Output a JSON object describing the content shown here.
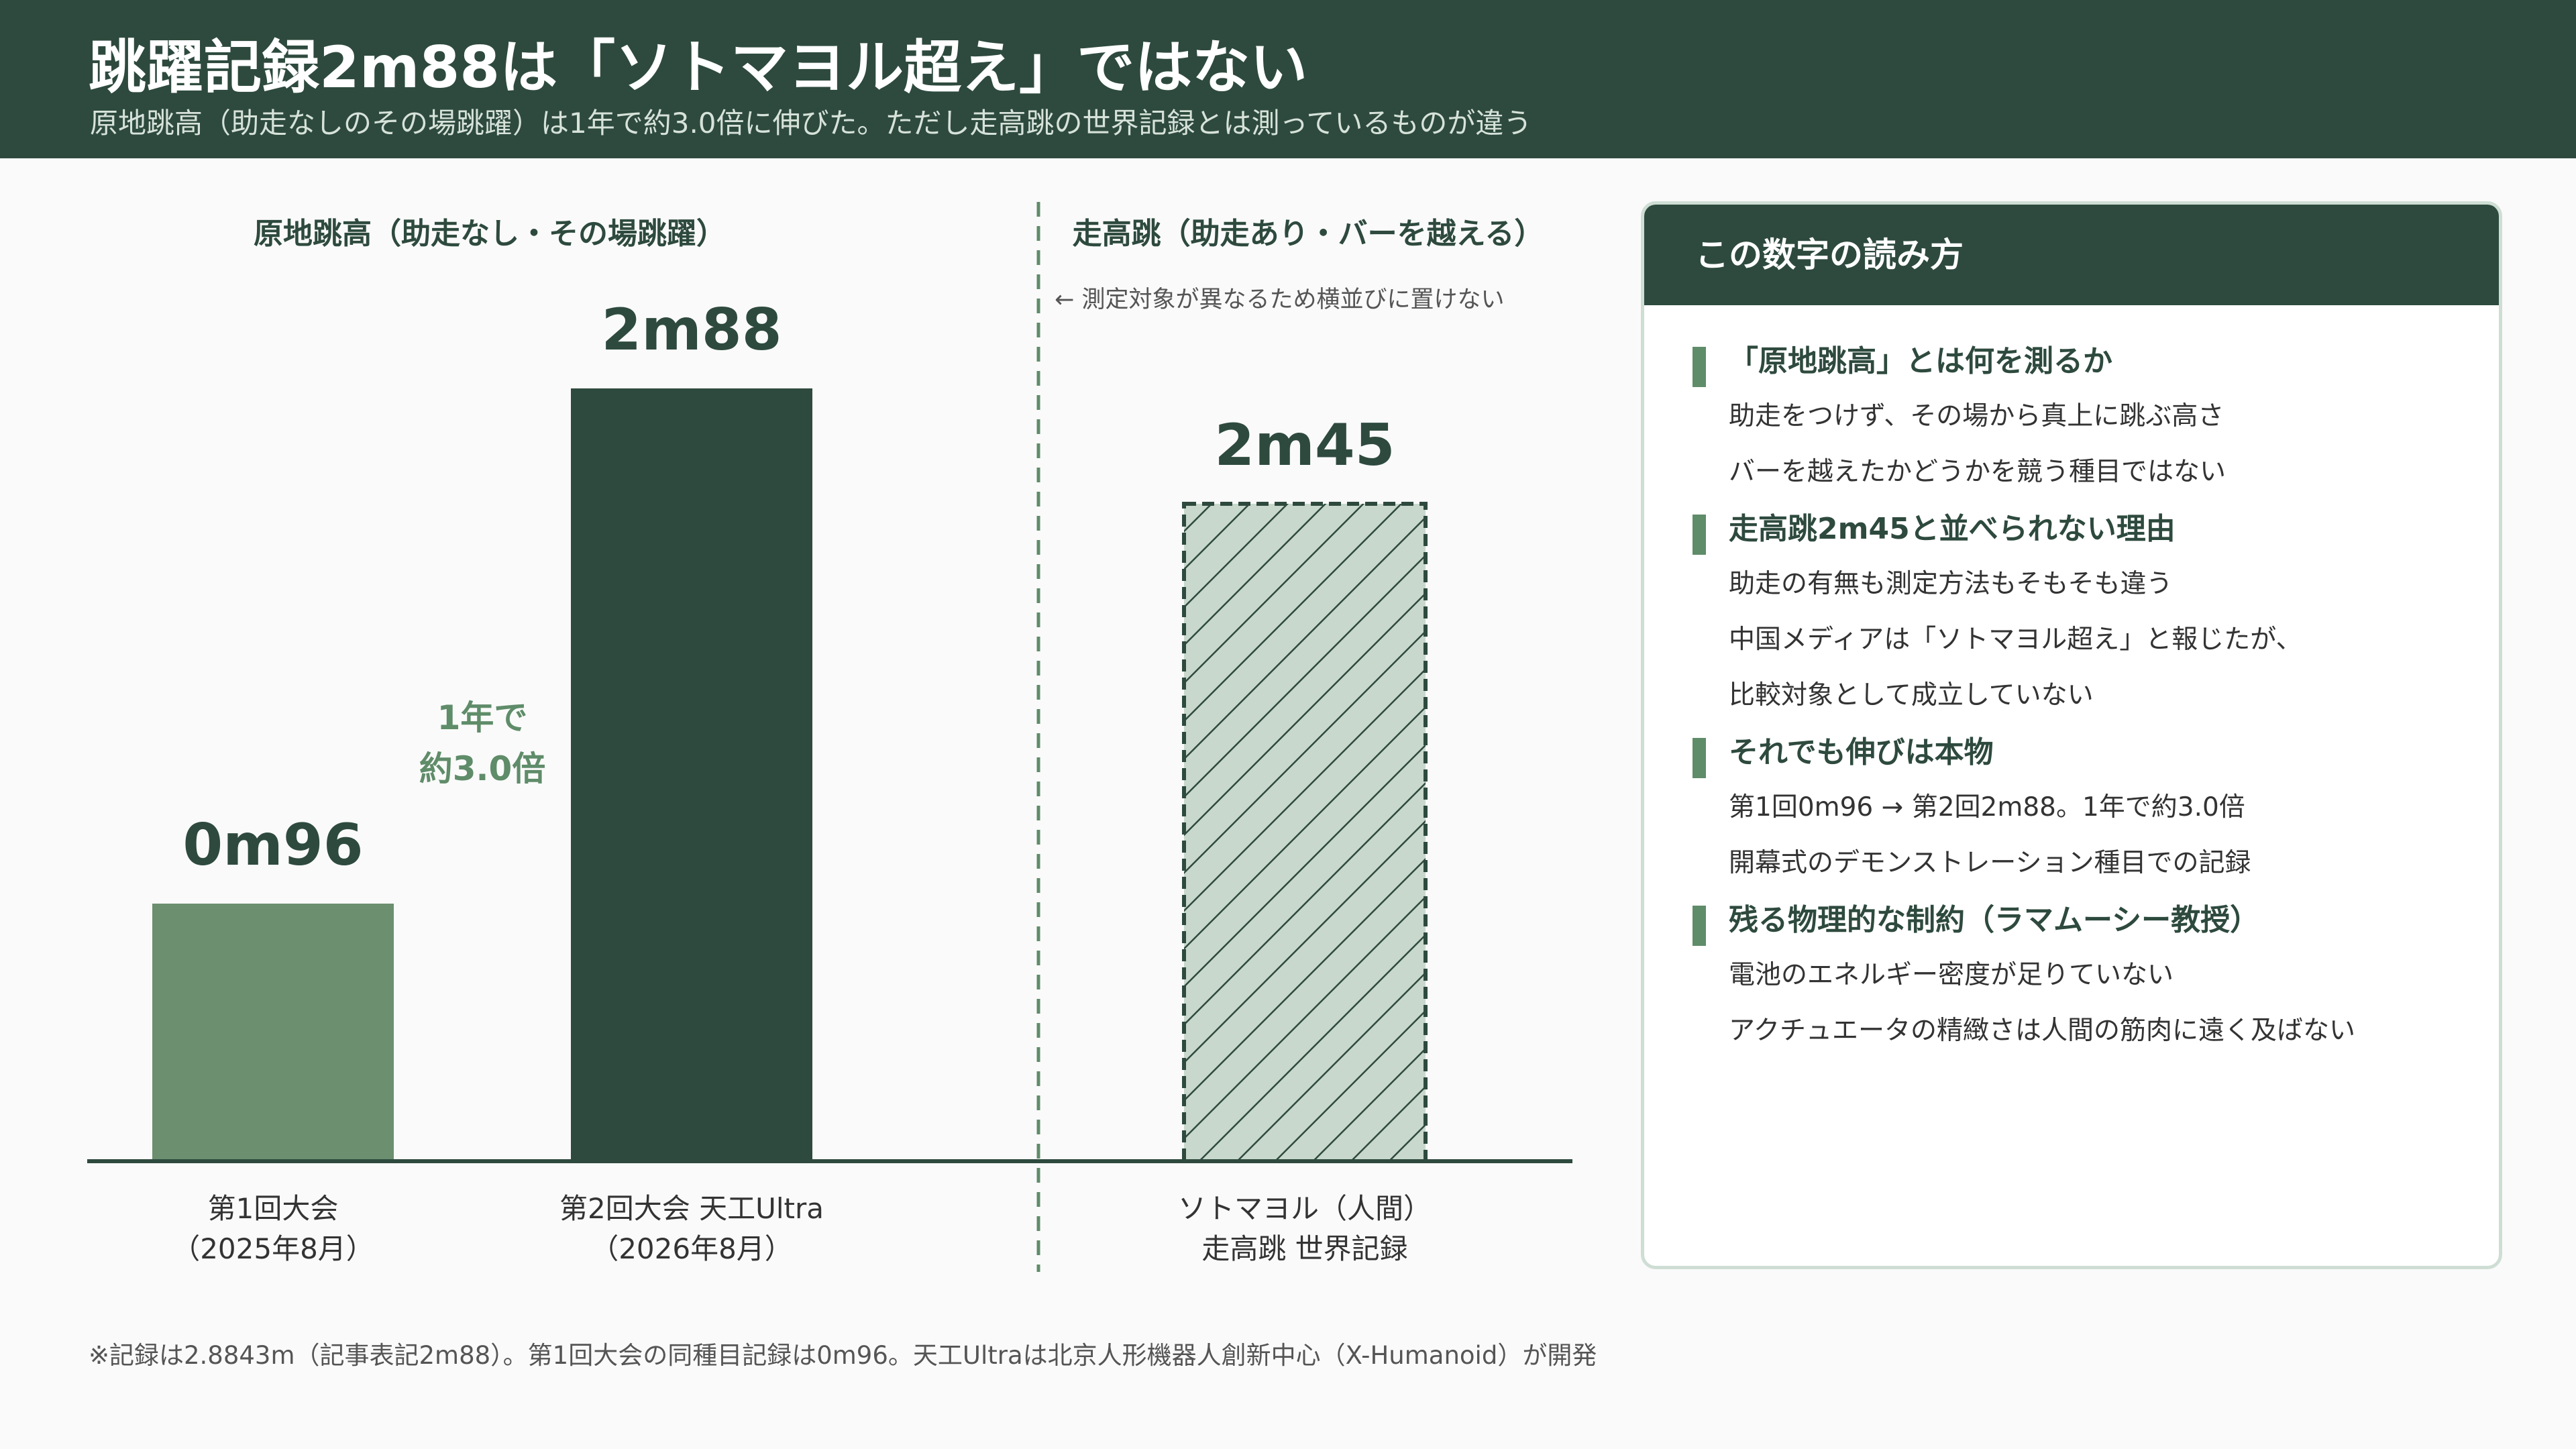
{
  "header": {
    "title": "跳躍記録2m88は「ソトマヨル超え」ではない",
    "subtitle": "原地跳高（助走なしのその場跳躍）は1年で約3.0倍に伸びた。ただし走高跳の世界記録とは測っているものが違う"
  },
  "chart_data": {
    "type": "bar",
    "groups": [
      {
        "title": "原地跳高（助走なし・その場跳躍）",
        "bars": [
          0,
          1
        ]
      },
      {
        "title": "走高跳（助走あり・バーを越える）",
        "bars": [
          2
        ],
        "note": "← 測定対象が異なるため横並びに置けない"
      }
    ],
    "bars": [
      {
        "category": [
          "第1回大会",
          "（2025年8月）"
        ],
        "value": 0.96,
        "value_label": "0m96",
        "color": "#6b8f6f",
        "style": "solid"
      },
      {
        "category": [
          "第2回大会 天工Ultra",
          "（2026年8月）"
        ],
        "value": 2.88,
        "value_label": "2m88",
        "color": "#2e4a3e",
        "style": "solid"
      },
      {
        "category": [
          "ソトマヨル（人間）",
          "走高跳 世界記録"
        ],
        "value": 2.45,
        "value_label": "2m45",
        "color": "#c9d8cc",
        "style": "hatched"
      }
    ],
    "annotation": [
      "1年で",
      "約3.0倍"
    ],
    "ylim": [
      0,
      3.3
    ],
    "grid": false,
    "legend": "none",
    "colors": {
      "value_label": "#2e4a3e",
      "annotation": "#5f8c69",
      "divider": "#5f8c69",
      "baseline": "#2e4a3e"
    }
  },
  "panel": {
    "title": "この数字の読み方",
    "sections": [
      {
        "title": "「原地跳高」とは何を測るか",
        "lines": [
          "助走をつけず、その場から真上に跳ぶ高さ",
          "バーを越えたかどうかを競う種目ではない"
        ]
      },
      {
        "title": "走高跳2m45と並べられない理由",
        "lines": [
          "助走の有無も測定方法もそもそも違う",
          "中国メディアは「ソトマヨル超え」と報じたが、",
          "比較対象として成立していない"
        ]
      },
      {
        "title": "それでも伸びは本物",
        "lines": [
          "第1回0m96 → 第2回2m88。1年で約3.0倍",
          "開幕式のデモンストレーション種目での記録"
        ]
      },
      {
        "title": "残る物理的な制約（ラマムーシー教授）",
        "lines": [
          "電池のエネルギー密度が足りていない",
          "アクチュエータの精緻さは人間の筋肉に遠く及ばない"
        ]
      }
    ]
  },
  "footnote": "※記録は2.8843m（記事表記2m88）。第1回大会の同種目記録は0m96。天工Ultraは北京人形機器人創新中心（X-Humanoid）が開発"
}
